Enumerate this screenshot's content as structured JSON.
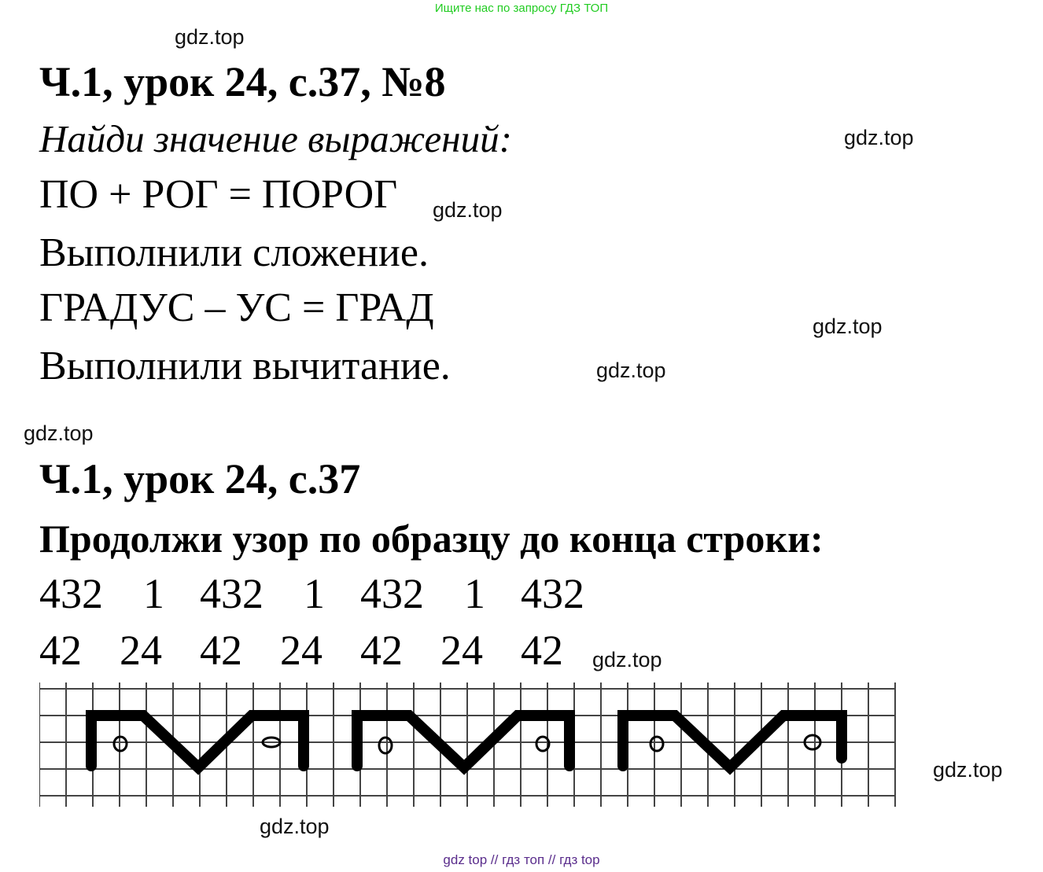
{
  "banner": "Ищите нас по запросу ГДЗ ТОП",
  "watermark": "gdz.top",
  "section1": {
    "heading": "Ч.1, урок 24, с.37, №8",
    "task": "Найди значение выражений:",
    "lines": [
      "ПО + РОГ = ПОРОГ",
      "Выполнили сложение.",
      "ГРАДУС – УС = ГРАД",
      "Выполнили вычитание."
    ]
  },
  "section2": {
    "heading": "Ч.1, урок 24, с.37",
    "task": "Продолжи узор по образцу до конца строки:",
    "row1": [
      "432",
      "1",
      "432",
      "1",
      "432",
      "1",
      "432"
    ],
    "row2": [
      "42",
      "24",
      "42",
      "24",
      "42",
      "24",
      "42"
    ]
  },
  "footer": "gdz top  //  гдз топ  //  гдз top",
  "colors": {
    "banner": "#22cc22",
    "footer": "#5a2d8c"
  }
}
